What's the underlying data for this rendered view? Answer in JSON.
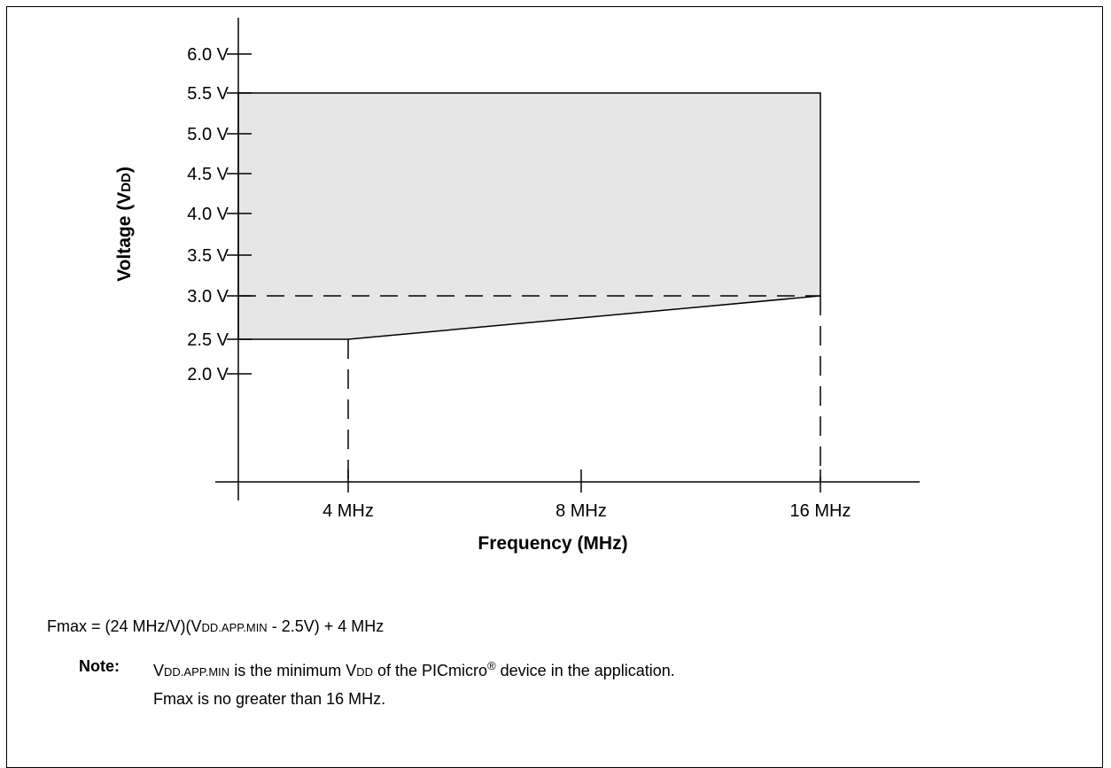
{
  "chart_data": {
    "type": "area",
    "xlabel": "Frequency (MHz)",
    "ylabel_main": "Voltage (V",
    "ylabel_sub": "DD",
    "ylabel_end": ")",
    "y_ticks": [
      {
        "value": 2.0,
        "label": "2.0 V"
      },
      {
        "value": 2.5,
        "label": "2.5 V"
      },
      {
        "value": 3.0,
        "label": "3.0 V"
      },
      {
        "value": 3.5,
        "label": "3.5 V"
      },
      {
        "value": 4.0,
        "label": "4.0 V"
      },
      {
        "value": 4.5,
        "label": "4.5 V"
      },
      {
        "value": 5.0,
        "label": "5.0 V"
      },
      {
        "value": 5.5,
        "label": "5.5 V"
      },
      {
        "value": 6.0,
        "label": "6.0 V"
      }
    ],
    "x_ticks": [
      {
        "value": 4,
        "label": "4 MHz"
      },
      {
        "value": 8,
        "label": "8 MHz"
      },
      {
        "value": 16,
        "label": "16 MHz"
      }
    ],
    "region": [
      {
        "x": 0,
        "y": 2.5
      },
      {
        "x": 4,
        "y": 2.5
      },
      {
        "x": 16,
        "y": 3.0
      },
      {
        "x": 16,
        "y": 5.5
      },
      {
        "x": 0,
        "y": 5.5
      }
    ],
    "reference_lines": [
      {
        "orientation": "horizontal",
        "value": 3.0,
        "style": "dashed"
      },
      {
        "orientation": "vertical",
        "value": 4,
        "style": "dashed"
      },
      {
        "orientation": "vertical",
        "value": 16,
        "style": "dashed"
      }
    ],
    "fill_color": "#e6e6e6"
  },
  "formula": {
    "prefix": "Fmax = (24 MHz/V)(V",
    "sub": "DD.APP.MIN",
    "suffix": " - 2.5V) + 4 MHz"
  },
  "note": {
    "label": "Note:",
    "line1_v": "V",
    "line1_sub": "DD.APP.MIN",
    "line1_mid": " is the minimum V",
    "line1_sub2": "DD",
    "line1_end": " of the PICmicro",
    "line1_reg": "®",
    "line1_tail": " device in the application.",
    "line2": "Fmax is no greater than 16 MHz."
  }
}
